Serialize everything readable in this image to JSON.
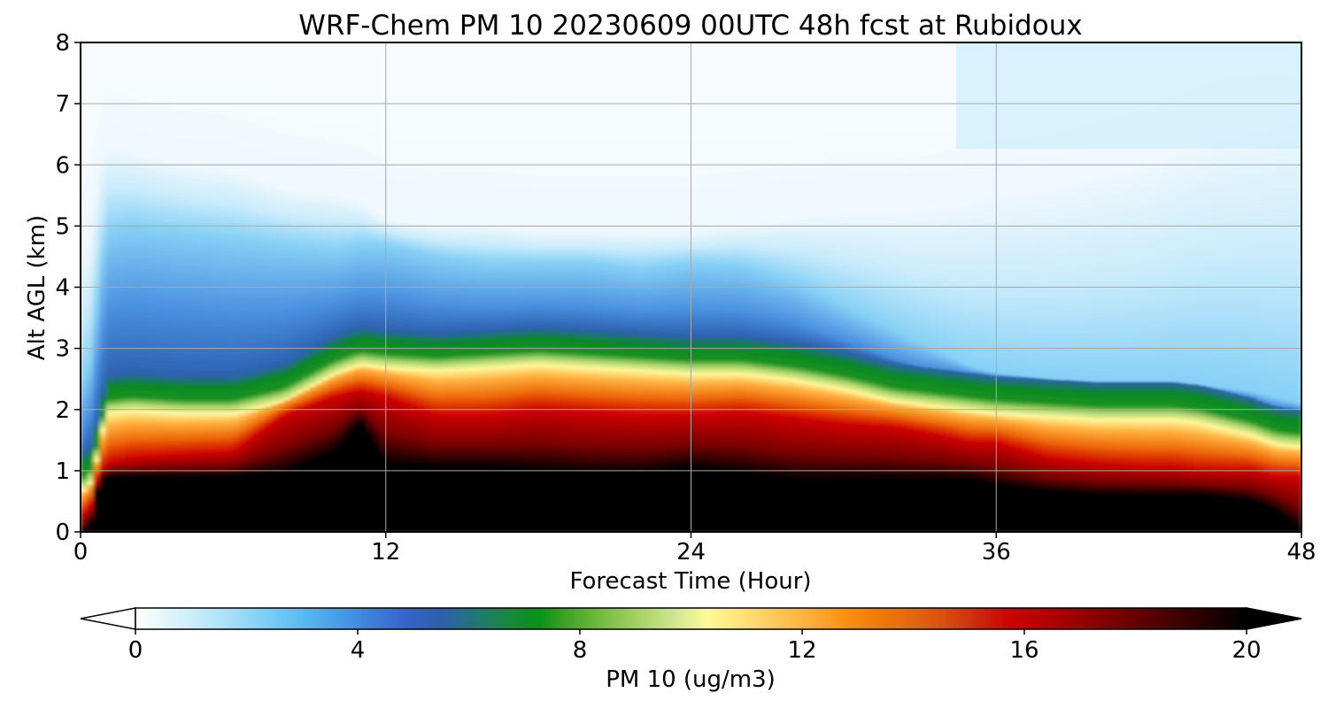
{
  "chart_data": {
    "type": "heatmap",
    "title": "WRF-Chem PM 10  20230609 00UTC 48h fcst at Rubidoux",
    "xlabel": "Forecast Time (Hour)",
    "ylabel": "Alt AGL (km)",
    "xlim": [
      0,
      48
    ],
    "ylim": [
      0,
      8
    ],
    "xticks": [
      "0",
      "12",
      "24",
      "36",
      "48"
    ],
    "yticks": [
      "0",
      "1",
      "2",
      "3",
      "4",
      "5",
      "6",
      "7",
      "8"
    ],
    "grid": true,
    "profile": {
      "hours": [
        0.3,
        0.7,
        1,
        2,
        4,
        6,
        8,
        10,
        11,
        12,
        14,
        16,
        18,
        20,
        22,
        24,
        26,
        28,
        30,
        32,
        34,
        35,
        36,
        38,
        40,
        42,
        43,
        44,
        46,
        47,
        48
      ],
      "black_top_km": [
        0,
        0.8,
        0.9,
        0.9,
        0.9,
        0.9,
        0.95,
        1.3,
        1.8,
        1.1,
        1.05,
        1.05,
        1.0,
        0.95,
        0.95,
        1.05,
        0.95,
        0.85,
        0.85,
        0.85,
        0.85,
        0.85,
        0.75,
        0.65,
        0.6,
        0.6,
        0.6,
        0.6,
        0.5,
        0.35,
        0.0
      ],
      "red_top_km": [
        0.3,
        0.95,
        1.1,
        1.2,
        1.25,
        1.3,
        1.9,
        2.2,
        2.3,
        2.2,
        1.9,
        1.9,
        2.0,
        1.95,
        1.9,
        1.9,
        1.95,
        1.85,
        1.75,
        1.7,
        1.55,
        1.45,
        1.45,
        1.2,
        1.1,
        1.05,
        1.05,
        1.0,
        1.0,
        0.9,
        0.9
      ],
      "green_km": [
        0.8,
        1.4,
        2.05,
        2.1,
        2.05,
        2.05,
        2.25,
        2.7,
        2.85,
        2.8,
        2.75,
        2.8,
        2.85,
        2.8,
        2.75,
        2.7,
        2.7,
        2.6,
        2.45,
        2.25,
        2.15,
        2.1,
        2.05,
        2.0,
        1.95,
        1.95,
        1.95,
        1.9,
        1.7,
        1.55,
        1.5
      ],
      "blue_top_km": [
        2.5,
        3.9,
        4.9,
        5.0,
        4.9,
        4.8,
        4.7,
        4.6,
        4.7,
        4.7,
        4.5,
        4.4,
        4.4,
        4.4,
        4.3,
        4.4,
        4.35,
        4.1,
        3.7,
        3.3,
        2.9,
        2.7,
        2.6,
        2.5,
        2.45,
        2.4,
        2.4,
        2.4,
        2.3,
        2.2,
        2.1
      ],
      "haze_top_km": [
        4.5,
        5.8,
        6.3,
        6.2,
        6.0,
        5.9,
        5.6,
        5.5,
        5.4,
        5.1,
        5.0,
        5.0,
        4.9,
        4.9,
        4.9,
        4.9,
        5.0,
        5.1,
        5.2,
        5.2,
        5.3,
        5.4,
        5.5,
        5.6,
        5.8,
        6.0,
        6.2,
        6.4,
        6.6,
        6.7,
        6.8
      ]
    },
    "colorbar": {
      "label": "PM 10  (ug/m3)",
      "min": 0,
      "max": 20,
      "ticks": [
        "0",
        "4",
        "8",
        "12",
        "16",
        "20"
      ],
      "extend": "both",
      "colors": [
        "#ffffff",
        "#e0f4fc",
        "#c2e9fa",
        "#a0dcf8",
        "#78ccf5",
        "#5ab8f0",
        "#4a9de6",
        "#3f7fd8",
        "#3566c8",
        "#2d5fae",
        "#23747a",
        "#1a8740",
        "#0a9216",
        "#4ba72c",
        "#7dbf45",
        "#a8d36a",
        "#cfe690",
        "#fff89a",
        "#ffe27a",
        "#ffc85c",
        "#ffae3c",
        "#fb9316",
        "#f07c08",
        "#e46810",
        "#d84f12",
        "#cc2a10",
        "#cc0000",
        "#b30000",
        "#990000",
        "#7a0000",
        "#5c0000",
        "#3d0000",
        "#1f0000",
        "#000000"
      ]
    }
  }
}
